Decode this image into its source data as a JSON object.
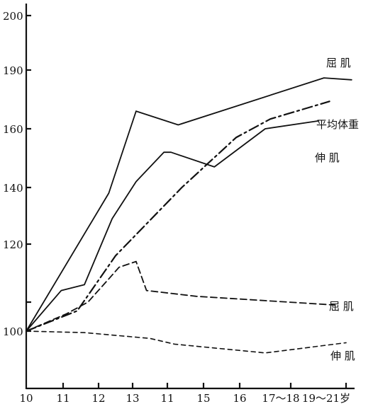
{
  "chart_data": {
    "type": "line",
    "title": "",
    "xlabel": "",
    "ylabel": "",
    "x_categories": [
      "10",
      "11",
      "12",
      "13",
      "11",
      "15",
      "16",
      "17～18",
      "19～21岁"
    ],
    "y_ticks": [
      "100",
      "120",
      "140",
      "160",
      "190",
      "200"
    ],
    "series": [
      {
        "name": "屈 肌",
        "style": "solid",
        "x": [
          10,
          12.3,
          13.1,
          14.3,
          17.6,
          18.1
        ],
        "y": [
          100,
          138,
          169,
          162,
          186,
          185
        ]
      },
      {
        "name": "平均体重",
        "style": "dash-dot",
        "x": [
          10,
          11.4,
          12.5,
          14.4,
          15.9,
          16.6,
          17.7
        ],
        "y": [
          100,
          107,
          118,
          140,
          157,
          165,
          174
        ]
      },
      {
        "name": "伸 肌",
        "style": "solid",
        "x": [
          10,
          10.95,
          11.6,
          12.4,
          13.1,
          13.9,
          14.1,
          15.3,
          16.5,
          17.5
        ],
        "y": [
          100,
          112,
          113,
          129,
          142,
          152,
          152,
          147,
          160,
          164
        ]
      },
      {
        "name": "屈 肌",
        "style": "dashed",
        "x": [
          10,
          11.1,
          11.7,
          12.3,
          12.6,
          13.1,
          13.4,
          14.8,
          17.8
        ],
        "y": [
          100,
          106,
          110,
          114,
          116,
          117,
          112,
          111,
          109
        ]
      },
      {
        "name": "伸 肌",
        "style": "short-dashed",
        "x": [
          10,
          11.6,
          13.5,
          14.2,
          16.5,
          18.0
        ],
        "y": [
          100,
          99.5,
          97.5,
          95.5,
          92.5,
          96
        ]
      }
    ],
    "grid": false,
    "legend": "labels at line ends"
  }
}
